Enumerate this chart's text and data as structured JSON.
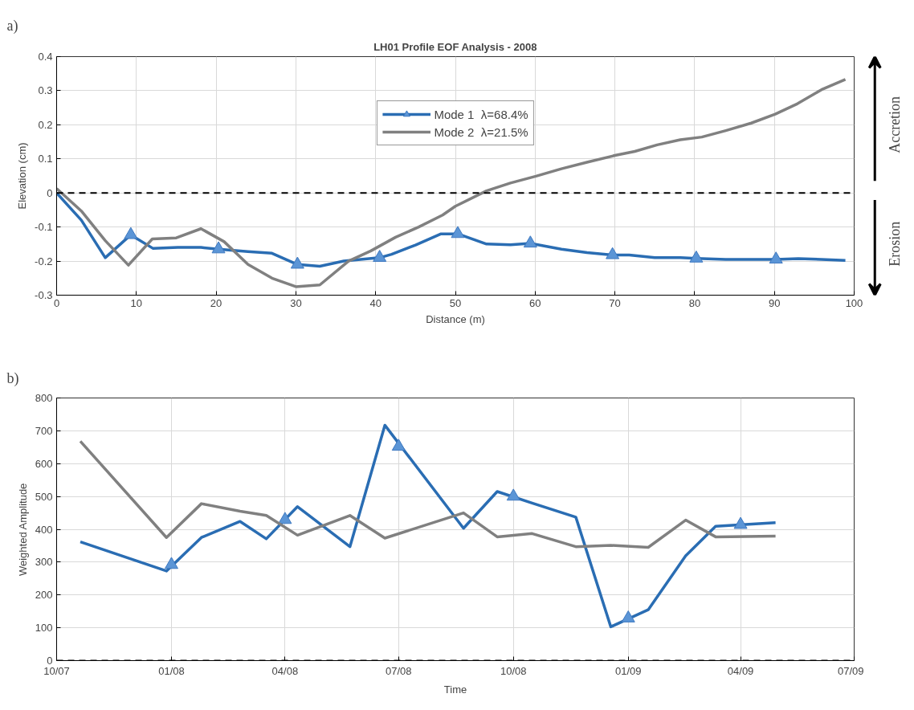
{
  "chart_data": [
    {
      "type": "line",
      "title": "LH01 Profile EOF Analysis - 2008",
      "xlabel": "Distance (m)",
      "ylabel": "Elevation (cm)",
      "annotations": [
        "a)",
        "Accretion",
        "Erosion"
      ],
      "xlim": [
        0,
        100
      ],
      "xticks": [
        0,
        10,
        20,
        30,
        40,
        50,
        60,
        70,
        80,
        90,
        100
      ],
      "ylim": [
        -0.3,
        0.4
      ],
      "yticks": [
        -0.3,
        -0.2,
        -0.1,
        0,
        0.1,
        0.2,
        0.3,
        0.4
      ],
      "grid": true,
      "legend": "top",
      "line_style": "solid",
      "ref_lines": [
        {
          "axis": "y",
          "value": 0,
          "color": "#000000",
          "line_style": "dashed"
        }
      ],
      "series": [
        {
          "name": "Mode 1  λ=68.4%",
          "color": "#2a6db3",
          "x": [
            0,
            3.1,
            6.1,
            9.3,
            12.1,
            15.2,
            18.1,
            20.3,
            24,
            27,
            30.2,
            33,
            36,
            40.5,
            42,
            45,
            48.2,
            50.3,
            53.9,
            56.9,
            59.4,
            63.3,
            66.5,
            69.7,
            71.8,
            75,
            78.2,
            80.2,
            83.9,
            87,
            90.2,
            93,
            95.9,
            98.9
          ],
          "values": [
            0,
            -0.08,
            -0.19,
            -0.123,
            -0.163,
            -0.16,
            -0.16,
            -0.165,
            -0.172,
            -0.177,
            -0.21,
            -0.215,
            -0.2,
            -0.19,
            -0.18,
            -0.153,
            -0.12,
            -0.12,
            -0.15,
            -0.152,
            -0.148,
            -0.165,
            -0.175,
            -0.182,
            -0.182,
            -0.19,
            -0.19,
            -0.192,
            -0.195,
            -0.195,
            -0.195,
            -0.193,
            -0.195,
            -0.198
          ]
        },
        {
          "type": "scatter",
          "marker": "triangle",
          "color": "#5b95d6",
          "x": [
            9.3,
            20.3,
            30.2,
            40.5,
            50.3,
            59.4,
            69.7,
            80.2,
            90.2
          ],
          "values": [
            -0.123,
            -0.165,
            -0.21,
            -0.19,
            -0.12,
            -0.148,
            -0.182,
            -0.192,
            -0.195
          ]
        },
        {
          "name": "Mode 2  λ=21.5%",
          "color": "#808080",
          "x": [
            0,
            3.1,
            6.1,
            9,
            12,
            15,
            18.1,
            21,
            24,
            27,
            30,
            33,
            36.6,
            39.4,
            42.5,
            45.4,
            48.4,
            50,
            53.9,
            56.9,
            60.1,
            63.3,
            66.5,
            70,
            72.5,
            75.3,
            78.2,
            80.9,
            83.9,
            87.1,
            90.1,
            92.9,
            95.9,
            98.9
          ],
          "values": [
            0.013,
            -0.053,
            -0.14,
            -0.212,
            -0.135,
            -0.132,
            -0.105,
            -0.143,
            -0.21,
            -0.25,
            -0.275,
            -0.27,
            -0.2,
            -0.17,
            -0.13,
            -0.1,
            -0.065,
            -0.039,
            0.006,
            0.029,
            0.049,
            0.071,
            0.09,
            0.11,
            0.122,
            0.141,
            0.156,
            0.164,
            0.183,
            0.205,
            0.231,
            0.262,
            0.303,
            0.333
          ]
        }
      ]
    },
    {
      "type": "line",
      "xlabel": "Time",
      "ylabel": "Weighted Amplitude",
      "annotations": [
        "b)"
      ],
      "xlim": [
        "2007-10-01",
        "2009-07-01"
      ],
      "xticks": [
        {
          "value": "2007-10-01",
          "label": "10/07"
        },
        {
          "value": "2008-01-01",
          "label": "01/08"
        },
        {
          "value": "2008-04-01",
          "label": "04/08"
        },
        {
          "value": "2008-07-01",
          "label": "07/08"
        },
        {
          "value": "2008-10-01",
          "label": "10/08"
        },
        {
          "value": "2009-01-01",
          "label": "01/09"
        },
        {
          "value": "2009-04-01",
          "label": "04/09"
        },
        {
          "value": "2009-07-01",
          "label": "07/09"
        }
      ],
      "ylim": [
        0,
        800
      ],
      "yticks": [
        0,
        100,
        200,
        300,
        400,
        500,
        600,
        700,
        800
      ],
      "grid": true,
      "legend": false,
      "line_style": "solid",
      "ref_lines": [
        {
          "axis": "y",
          "value": 0,
          "color": "#000000",
          "line_style": "dashed"
        }
      ],
      "x": [
        "2007-10-20",
        "2007-12-28",
        "2008-01-25",
        "2008-02-25",
        "2008-03-17",
        "2008-04-11",
        "2008-05-23",
        "2008-06-20",
        "2008-08-22",
        "2008-09-18",
        "2008-10-16",
        "2008-11-20",
        "2008-12-18",
        "2009-01-17",
        "2009-02-16",
        "2009-03-12",
        "2009-04-29"
      ],
      "series": [
        {
          "color": "#2a6db3",
          "values": [
            362,
            273,
            375,
            424,
            371,
            469,
            347,
            717,
            403,
            515,
            480,
            437,
            103,
            155,
            319,
            409,
            420
          ]
        },
        {
          "type": "scatter",
          "marker": "triangle",
          "color": "#5b95d6",
          "x": [
            "2008-01-01",
            "2008-04-01",
            "2008-07-01",
            "2008-10-01",
            "2009-01-01",
            "2009-04-01"
          ],
          "values": [
            292,
            429,
            652,
            500,
            129,
            414
          ]
        },
        {
          "color": "#808080",
          "values": [
            668,
            375,
            478,
            455,
            442,
            382,
            442,
            373,
            450,
            377,
            387,
            347,
            351,
            345,
            428,
            377,
            379
          ]
        }
      ]
    }
  ]
}
